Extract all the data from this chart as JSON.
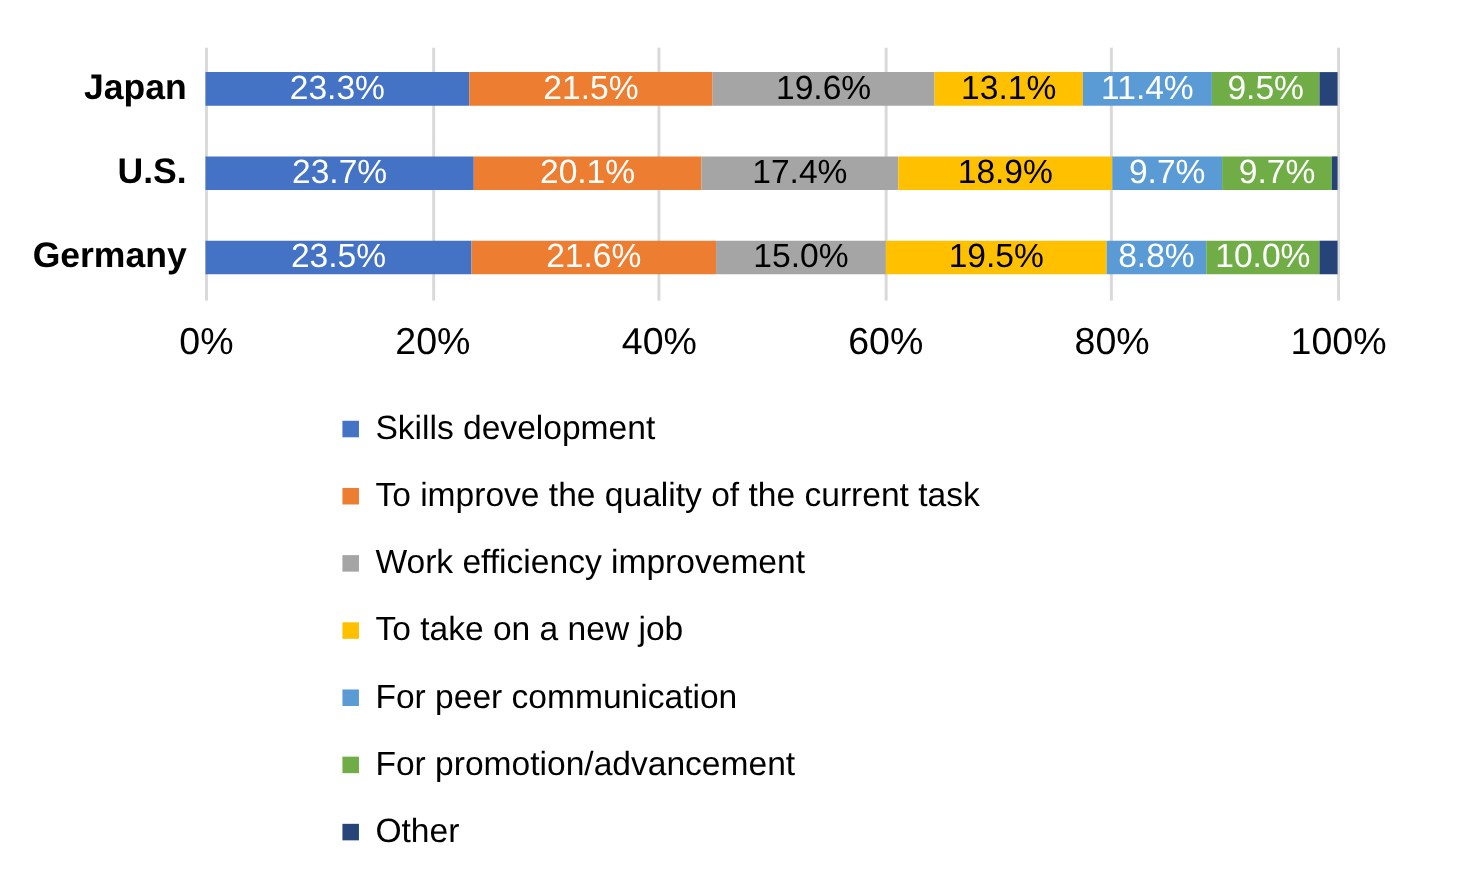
{
  "chart_data": {
    "type": "bar",
    "orientation": "horizontal",
    "stacked": true,
    "categories": [
      "Japan",
      "U.S.",
      "Germany"
    ],
    "series": [
      {
        "name": "Skills development",
        "color": "#4472c4",
        "values": [
          23.3,
          23.7,
          23.5
        ],
        "value_labels": [
          "23.3%",
          "23.7%",
          "23.5%"
        ]
      },
      {
        "name": "To improve the quality of the current task",
        "color": "#ed7d31",
        "values": [
          21.5,
          20.1,
          21.6
        ],
        "value_labels": [
          "21.5%",
          "20.1%",
          "21.6%"
        ]
      },
      {
        "name": "Work efficiency improvement",
        "color": "#a5a5a5",
        "values": [
          19.6,
          17.4,
          15.0
        ],
        "value_labels": [
          "19.6%",
          "17.4%",
          "15.0%"
        ]
      },
      {
        "name": "To take on a new job",
        "color": "#ffc000",
        "values": [
          13.1,
          18.9,
          19.5
        ],
        "value_labels": [
          "13.1%",
          "18.9%",
          "19.5%"
        ]
      },
      {
        "name": "For peer communication",
        "color": "#5b9bd5",
        "values": [
          11.4,
          9.7,
          8.8
        ],
        "value_labels": [
          "11.4%",
          "9.7%",
          "8.8%"
        ]
      },
      {
        "name": "For promotion/advancement",
        "color": "#70ad47",
        "values": [
          9.5,
          9.7,
          10.0
        ],
        "value_labels": [
          "9.5%",
          "9.7%",
          "10.0%"
        ]
      },
      {
        "name": "Other",
        "color": "#264478",
        "values": [
          1.6,
          0.5,
          1.6
        ],
        "value_labels": [
          null,
          null,
          null
        ]
      }
    ],
    "xlim": [
      0,
      100
    ],
    "xticks": [
      {
        "value": 0,
        "label": "0%"
      },
      {
        "value": 20,
        "label": "20%"
      },
      {
        "value": 40,
        "label": "40%"
      },
      {
        "value": 60,
        "label": "60%"
      },
      {
        "value": 80,
        "label": "80%"
      },
      {
        "value": 100,
        "label": "100%"
      }
    ],
    "grid": "x",
    "legend": "bottom"
  }
}
